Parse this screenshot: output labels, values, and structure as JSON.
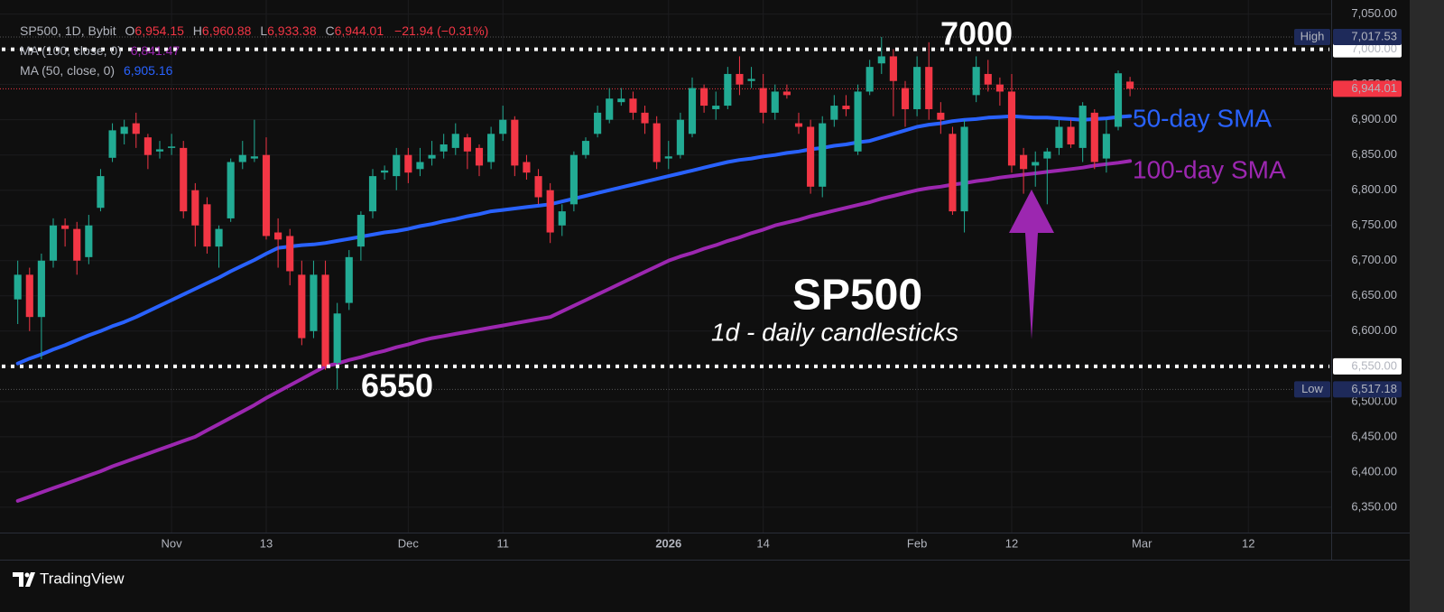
{
  "chart_data": {
    "type": "candlestick",
    "header": {
      "symbol": "SP500, 1D, Bybit",
      "ohlc": [
        {
          "label": "O",
          "value": "6,954.15"
        },
        {
          "label": "H",
          "value": "6,960.88"
        },
        {
          "label": "L",
          "value": "6,933.38"
        },
        {
          "label": "C",
          "value": "6,944.01"
        }
      ],
      "change": "−21.94 (−0.31%)"
    },
    "indicators": [
      {
        "name": "MA (100, close, 0)",
        "value_label": "6,841.47",
        "color": "#9c27b0",
        "annotation": "100-day SMA"
      },
      {
        "name": "MA (50, close, 0)",
        "value_label": "6,905.16",
        "color": "#2962ff",
        "annotation": "50-day SMA"
      }
    ],
    "title": "SP500",
    "subtitle": "1d - daily candlesticks",
    "up_color": "#22ab94",
    "down_color": "#f23645",
    "open": [
      6645,
      6680,
      6620,
      6700,
      6750,
      6745,
      6705,
      6775,
      6846,
      6880,
      6895,
      6875,
      6855,
      6860,
      6860,
      6800,
      6780,
      6720,
      6760,
      6840,
      6845,
      6850,
      6740,
      6735,
      6680,
      6600,
      6680,
      6555,
      6640,
      6720,
      6770,
      6825,
      6820,
      6850,
      6830,
      6845,
      6855,
      6860,
      6875,
      6860,
      6840,
      6880,
      6900,
      6840,
      6820,
      6800,
      6750,
      6780,
      6850,
      6880,
      6900,
      6925,
      6930,
      6910,
      6895,
      6845,
      6850,
      6880,
      6945,
      6915,
      6920,
      6965,
      6955,
      6945,
      6910,
      6940,
      6895,
      6890,
      6805,
      6900,
      6920,
      6855,
      6940,
      6980,
      6990,
      6945,
      6915,
      6975,
      6910,
      6880,
      6770,
      6935,
      6965,
      6950,
      6940,
      6850,
      6835,
      6845,
      6860,
      6890,
      6860,
      6910,
      6845,
      6890,
      6954.15
    ],
    "high": [
      6700,
      6690,
      6710,
      6760,
      6760,
      6755,
      6765,
      6830,
      6895,
      6900,
      6910,
      6880,
      6870,
      6880,
      6870,
      6810,
      6790,
      6750,
      6845,
      6870,
      6900,
      6875,
      6760,
      6745,
      6700,
      6700,
      6700,
      6640,
      6715,
      6770,
      6830,
      6835,
      6860,
      6860,
      6860,
      6870,
      6880,
      6895,
      6880,
      6865,
      6890,
      6920,
      6905,
      6850,
      6830,
      6810,
      6780,
      6855,
      6875,
      6920,
      6945,
      6945,
      6940,
      6920,
      6905,
      6870,
      6910,
      6960,
      6950,
      6940,
      6975,
      6990,
      6975,
      6965,
      6950,
      6950,
      6910,
      6900,
      6905,
      6935,
      6935,
      6950,
      6985,
      7017.53,
      7000,
      6955,
      6990,
      7010,
      6925,
      6890,
      6900,
      6990,
      6985,
      6960,
      6965,
      6860,
      6855,
      6860,
      6900,
      6900,
      6925,
      6915,
      6900,
      6970,
      6960.88
    ],
    "low": [
      6610,
      6600,
      6560,
      6690,
      6720,
      6680,
      6695,
      6770,
      6840,
      6865,
      6860,
      6830,
      6845,
      6850,
      6760,
      6720,
      6710,
      6690,
      6755,
      6830,
      6840,
      6730,
      6690,
      6665,
      6580,
      6590,
      6545,
      6517.18,
      6630,
      6700,
      6760,
      6815,
      6800,
      6810,
      6820,
      6835,
      6845,
      6850,
      6830,
      6820,
      6830,
      6870,
      6820,
      6815,
      6780,
      6725,
      6735,
      6770,
      6845,
      6875,
      6895,
      6920,
      6900,
      6880,
      6830,
      6830,
      6845,
      6875,
      6910,
      6900,
      6915,
      6935,
      6945,
      6895,
      6900,
      6930,
      6880,
      6795,
      6790,
      6890,
      6905,
      6850,
      6935,
      6965,
      6905,
      6890,
      6905,
      6900,
      6880,
      6765,
      6740,
      6925,
      6940,
      6920,
      6825,
      6795,
      6805,
      6780,
      6850,
      6860,
      6840,
      6830,
      6825,
      6885,
      6933.38
    ],
    "close": [
      6680,
      6620,
      6700,
      6750,
      6745,
      6700,
      6750,
      6820,
      6885,
      6890,
      6880,
      6850,
      6858,
      6862,
      6770,
      6750,
      6720,
      6745,
      6840,
      6850,
      6848,
      6735,
      6730,
      6685,
      6590,
      6680,
      6550,
      6625,
      6705,
      6765,
      6820,
      6828,
      6850,
      6825,
      6840,
      6850,
      6865,
      6880,
      6855,
      6835,
      6880,
      6900,
      6835,
      6825,
      6790,
      6740,
      6770,
      6850,
      6870,
      6910,
      6930,
      6930,
      6910,
      6895,
      6840,
      6848,
      6900,
      6945,
      6920,
      6920,
      6965,
      6950,
      6958,
      6910,
      6940,
      6935,
      6890,
      6805,
      6895,
      6920,
      6915,
      6940,
      6975,
      6990,
      6955,
      6915,
      6975,
      6915,
      6900,
      6770,
      6890,
      6975,
      6950,
      6940,
      6835,
      6830,
      6840,
      6855,
      6890,
      6865,
      6920,
      6840,
      6880,
      6965.95,
      6944.01
    ],
    "series": [
      {
        "name": "MA (50, close, 0)",
        "color": "#2962ff",
        "values": [
          6554,
          6561,
          6567,
          6574,
          6580,
          6587,
          6594,
          6600,
          6607,
          6613,
          6620,
          6628,
          6636,
          6644,
          6652,
          6660,
          6668,
          6676,
          6685,
          6693,
          6701,
          6710,
          6718,
          6720,
          6722,
          6723,
          6725,
          6728,
          6731,
          6734,
          6737,
          6740,
          6742,
          6745,
          6749,
          6752,
          6756,
          6759,
          6763,
          6766,
          6770,
          6772,
          6774,
          6776,
          6778,
          6780,
          6784,
          6788,
          6792,
          6796,
          6800,
          6804,
          6808,
          6812,
          6816,
          6820,
          6824,
          6828,
          6832,
          6836,
          6840,
          6843,
          6845,
          6848,
          6850,
          6853,
          6855,
          6858,
          6860,
          6863,
          6865,
          6868,
          6870,
          6875,
          6880,
          6885,
          6890,
          6893,
          6895,
          6898,
          6900,
          6901,
          6903,
          6904,
          6905,
          6904,
          6903,
          6903,
          6902,
          6901,
          6900,
          6901,
          6902,
          6904,
          6905.16
        ]
      },
      {
        "name": "MA (100, close, 0)",
        "color": "#9c27b0",
        "values": [
          6359,
          6365,
          6371,
          6377,
          6383,
          6389,
          6395,
          6401,
          6408,
          6414,
          6420,
          6426,
          6432,
          6438,
          6444,
          6450,
          6459,
          6468,
          6477,
          6486,
          6495,
          6505,
          6514,
          6523,
          6532,
          6541,
          6550,
          6554,
          6559,
          6563,
          6568,
          6572,
          6577,
          6581,
          6586,
          6590,
          6593,
          6596,
          6599,
          6602,
          6605,
          6608,
          6611,
          6614,
          6617,
          6620,
          6628,
          6636,
          6644,
          6652,
          6660,
          6668,
          6676,
          6684,
          6692,
          6700,
          6706,
          6711,
          6717,
          6722,
          6728,
          6733,
          6739,
          6744,
          6750,
          6754,
          6758,
          6763,
          6767,
          6771,
          6775,
          6779,
          6783,
          6788,
          6792,
          6796,
          6800,
          6803,
          6805,
          6808,
          6810,
          6813,
          6815,
          6818,
          6820,
          6822,
          6824,
          6826,
          6828,
          6830,
          6832,
          6835,
          6837,
          6839,
          6841.47
        ]
      }
    ],
    "levels": [
      7000,
      6550
    ],
    "level_labels": [
      "7,000.00",
      "6,550.00"
    ],
    "high_marker": {
      "label": "High",
      "value": 7017.53,
      "value_label": "7,017.53"
    },
    "low_marker": {
      "label": "Low",
      "value": 6517.18,
      "value_label": "6,517.18"
    },
    "last_price_label": "6,944.01",
    "xlim": [
      -1.5,
      111
    ],
    "xticks": [
      {
        "value": 13,
        "label": "Nov"
      },
      {
        "value": 21,
        "label": "13"
      },
      {
        "value": 33,
        "label": "Dec"
      },
      {
        "value": 41,
        "label": "11"
      },
      {
        "value": 55,
        "label": "2026"
      },
      {
        "value": 63,
        "label": "14"
      },
      {
        "value": 76,
        "label": "Feb"
      },
      {
        "value": 84,
        "label": "12"
      },
      {
        "value": 95,
        "label": "Mar"
      },
      {
        "value": 104,
        "label": "12"
      }
    ],
    "ylim": [
      6314,
      7070
    ],
    "yticks": [
      {
        "value": 6350,
        "label": "6,350.00"
      },
      {
        "value": 6400,
        "label": "6,400.00"
      },
      {
        "value": 6450,
        "label": "6,450.00"
      },
      {
        "value": 6500,
        "label": "6,500.00"
      },
      {
        "value": 6550,
        "label": "6,550.00"
      },
      {
        "value": 6600,
        "label": "6,600.00"
      },
      {
        "value": 6650,
        "label": "6,650.00"
      },
      {
        "value": 6700,
        "label": "6,700.00"
      },
      {
        "value": 6750,
        "label": "6,750.00"
      },
      {
        "value": 6800,
        "label": "6,800.00"
      },
      {
        "value": 6850,
        "label": "6,850.00"
      },
      {
        "value": 6900,
        "label": "6,900.00"
      },
      {
        "value": 6950,
        "label": "6,950.00"
      },
      {
        "value": 7000,
        "label": "7,000.00"
      },
      {
        "value": 7050,
        "label": "7,050.00"
      }
    ],
    "grid": true,
    "brand": "TradingView"
  }
}
